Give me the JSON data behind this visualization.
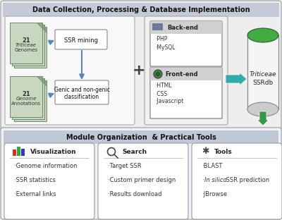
{
  "title_top": "Data Collection, Processing & Database Implementation",
  "title_bottom": "Module Organization  & Practical Tools",
  "top_panel_bg": "#eeeeee",
  "top_panel_title_bg": "#c8ccd8",
  "bottom_panel_bg": "#f5f5f5",
  "bottom_title_bg": "#c0c8d8",
  "vis_title": "Visualization",
  "vis_items": [
    "·Genome information",
    "·SSR statistics",
    "·External links"
  ],
  "search_title": "Search",
  "search_items": [
    "·Target SSR",
    "·Custom primer design",
    "·Results download"
  ],
  "tools_title": "Tools",
  "tools_items": [
    "·BLAST",
    "·In silico SSR prediction",
    "·JBrowse"
  ],
  "doc1_label1": "21",
  "doc1_label2": "Triticeae",
  "doc1_label3": "Genomes",
  "doc2_label1": "21",
  "doc2_label2": "Genome",
  "doc2_label3": "Annotations",
  "ssrbox_label": "SSR mining",
  "classbox_label1": "Genic and non-genic",
  "classbox_label2": "classification",
  "backend_title": "Back-end",
  "backend_items": [
    "·PHP",
    "·MySQL"
  ],
  "frontend_title": "Front-end",
  "frontend_items": [
    "·HTML",
    "·CSS",
    "·Javascript"
  ],
  "db_label1": "Triticeae",
  "db_label2": "SSRdb",
  "arrow_blue": "#5588bb",
  "arrow_teal": "#33aaaa",
  "arrow_green": "#339944",
  "doc_fill": "#c8d8c0",
  "doc_edge": "#6a8a6a",
  "cyl_top": "#44aa44",
  "cyl_body": "#f5f5f5",
  "cyl_edge": "#888888"
}
